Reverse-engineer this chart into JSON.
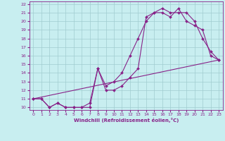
{
  "xlabel": "Windchill (Refroidissement éolien,°C)",
  "bg_color": "#c8eef0",
  "grid_color": "#a0ccd0",
  "line_color": "#882288",
  "xlim": [
    -0.5,
    23.5
  ],
  "ylim": [
    9.7,
    22.3
  ],
  "xticks": [
    0,
    1,
    2,
    3,
    4,
    5,
    6,
    7,
    8,
    9,
    10,
    11,
    12,
    13,
    14,
    15,
    16,
    17,
    18,
    19,
    20,
    21,
    22,
    23
  ],
  "yticks": [
    10,
    11,
    12,
    13,
    14,
    15,
    16,
    17,
    18,
    19,
    20,
    21,
    22
  ],
  "line1_x": [
    0,
    1,
    2,
    3,
    4,
    5,
    6,
    7,
    8,
    9,
    10,
    11,
    12,
    13,
    14,
    15,
    16,
    17,
    18,
    19,
    20,
    21,
    22,
    23
  ],
  "line1_y": [
    11,
    11,
    10,
    10.5,
    10,
    10,
    10,
    10.5,
    14.5,
    12.5,
    13,
    14,
    16,
    18,
    20,
    21,
    21.5,
    21,
    21,
    21,
    20,
    18,
    16.5,
    15.5
  ],
  "line2_x": [
    0,
    1,
    2,
    3,
    4,
    5,
    6,
    7,
    8,
    9,
    10,
    11,
    12,
    13,
    14,
    15,
    16,
    17,
    18,
    19,
    20,
    21,
    22,
    23
  ],
  "line2_y": [
    11,
    11,
    10,
    10.5,
    10,
    10,
    10,
    10,
    14.5,
    12,
    12,
    12.5,
    13.5,
    14.5,
    20.5,
    21,
    21,
    20.5,
    21.5,
    20,
    19.5,
    19,
    16,
    15.5
  ],
  "line3_x": [
    0,
    23
  ],
  "line3_y": [
    11,
    15.5
  ],
  "marker": "D",
  "markersize": 2.0,
  "linewidth": 0.8
}
